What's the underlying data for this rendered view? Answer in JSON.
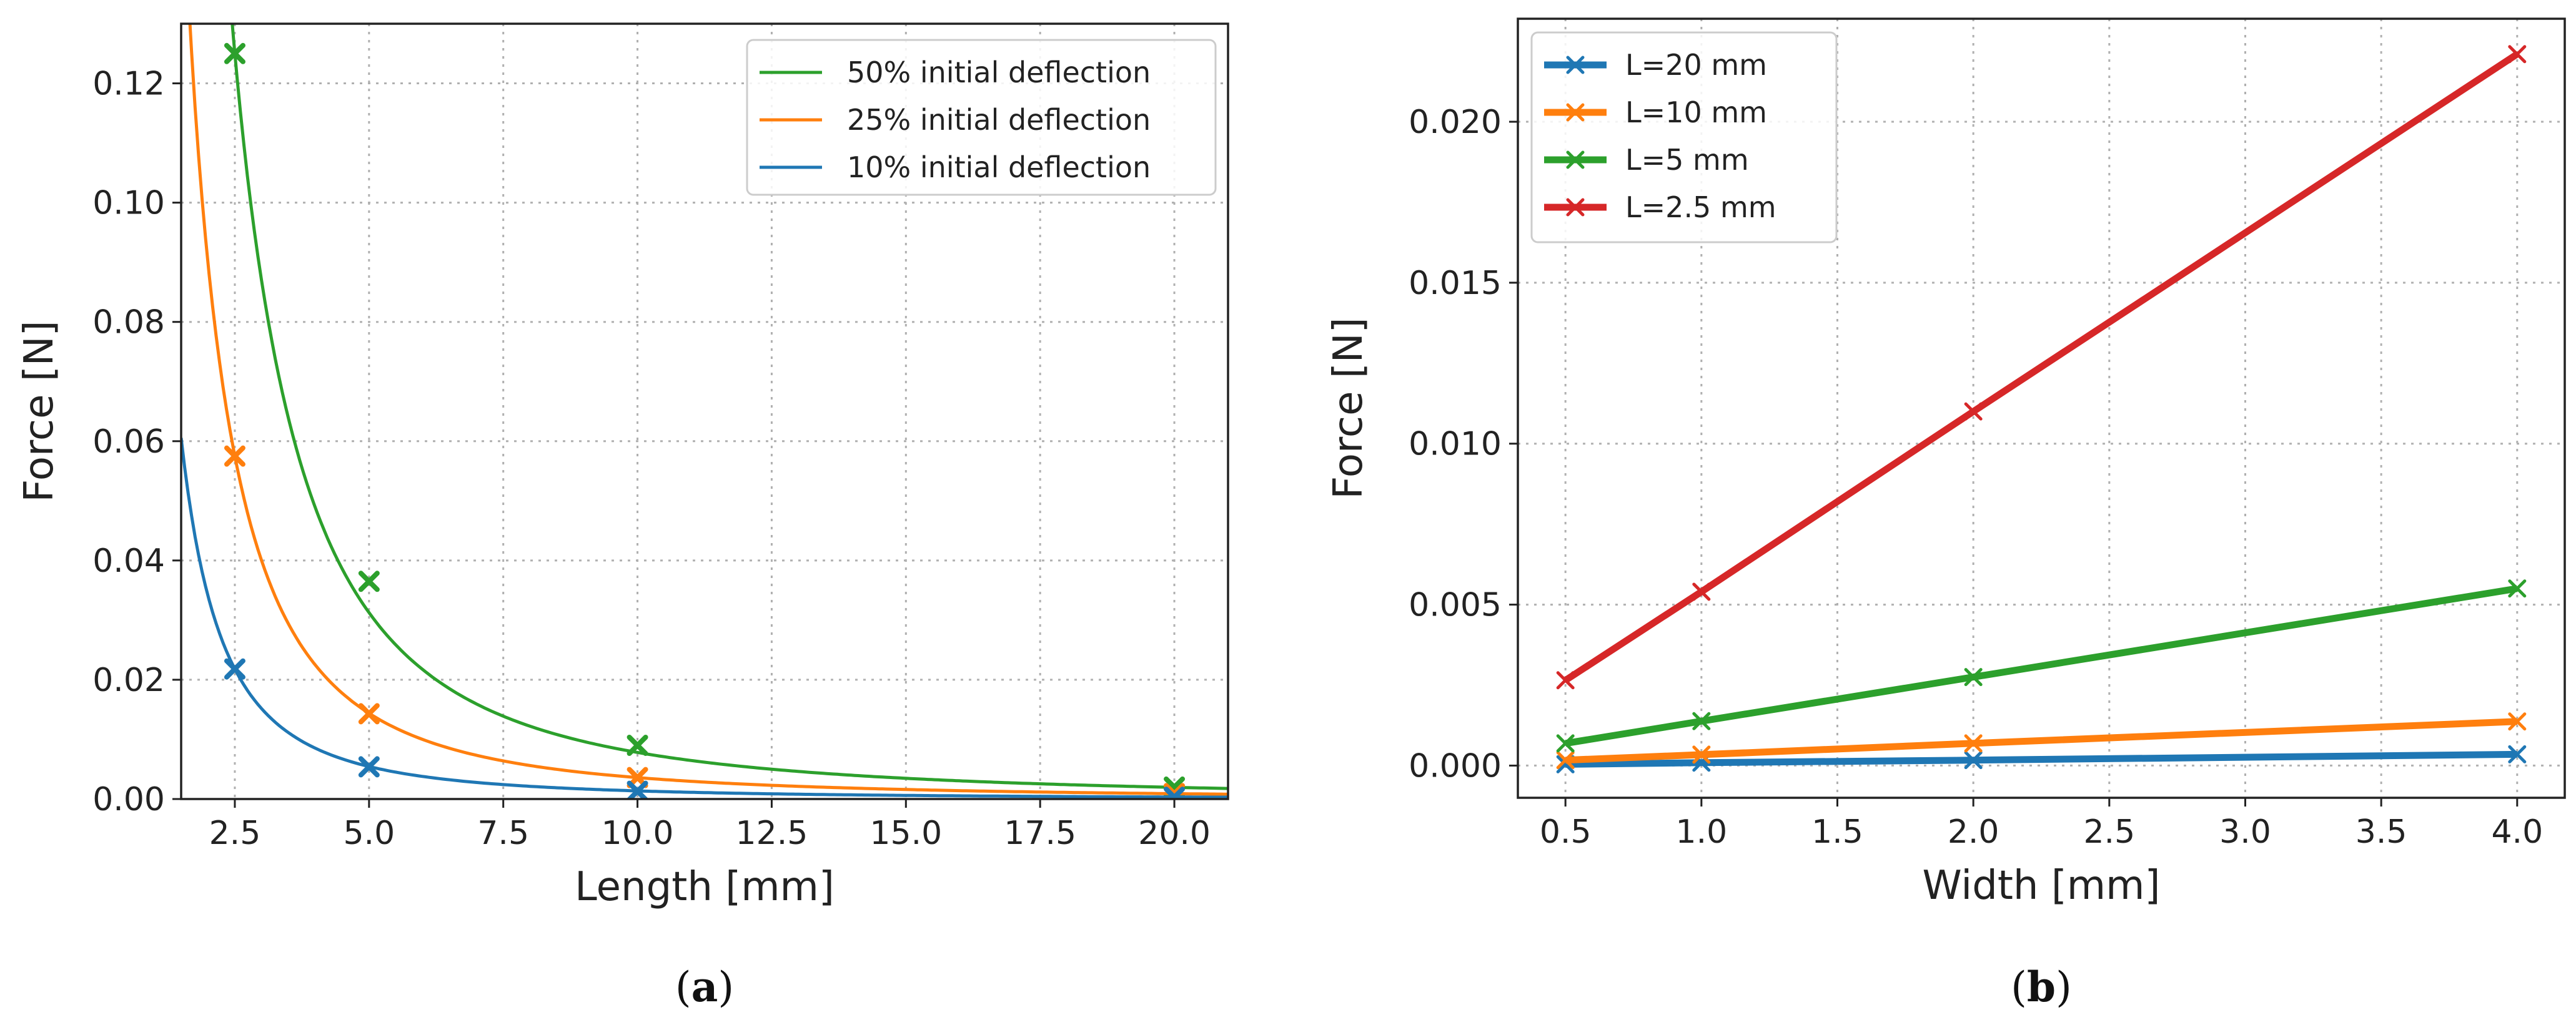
{
  "chart_data": [
    {
      "type": "line",
      "panel_label": "(a)",
      "panel_letter": "a",
      "xlabel": "Length [mm]",
      "ylabel": "Force [N]",
      "xlim": [
        1.5,
        21.0
      ],
      "ylim": [
        0.0,
        0.13
      ],
      "xticks": [
        2.5,
        5.0,
        7.5,
        10.0,
        12.5,
        15.0,
        17.5,
        20.0
      ],
      "xtick_labels": [
        "2.5",
        "5.0",
        "7.5",
        "10.0",
        "12.5",
        "15.0",
        "17.5",
        "20.0"
      ],
      "yticks": [
        0.0,
        0.02,
        0.04,
        0.06,
        0.08,
        0.1,
        0.12
      ],
      "ytick_labels": [
        "0.00",
        "0.02",
        "0.04",
        "0.06",
        "0.08",
        "0.10",
        "0.12"
      ],
      "grid": true,
      "legend_position": "top-right",
      "series": [
        {
          "name": "50% initial deflection",
          "color": "#2ca02c",
          "curve_k": 1.0,
          "markers_x": [
            2.5,
            5.0,
            10.0,
            20.0
          ],
          "markers_y": [
            0.125,
            0.0365,
            0.009,
            0.002
          ]
        },
        {
          "name": "25% initial deflection",
          "color": "#ff7f0e",
          "curve_k": 0.36,
          "markers_x": [
            2.5,
            5.0,
            10.0,
            20.0
          ],
          "markers_y": [
            0.0575,
            0.0143,
            0.0036,
            0.0009
          ]
        },
        {
          "name": "10% initial deflection",
          "color": "#1f77b4",
          "curve_k": 0.138,
          "markers_x": [
            2.5,
            5.0,
            10.0,
            20.0
          ],
          "markers_y": [
            0.0218,
            0.0054,
            0.0013,
            0.0003
          ]
        }
      ]
    },
    {
      "type": "line",
      "panel_label": "(b)",
      "panel_letter": "b",
      "xlabel": "Width [mm]",
      "ylabel": "Force [N]",
      "xlim": [
        0.325,
        4.175
      ],
      "ylim": [
        -0.001,
        0.0232
      ],
      "xticks": [
        0.5,
        1.0,
        1.5,
        2.0,
        2.5,
        3.0,
        3.5,
        4.0
      ],
      "xtick_labels": [
        "0.5",
        "1.0",
        "1.5",
        "2.0",
        "2.5",
        "3.0",
        "3.5",
        "4.0"
      ],
      "yticks": [
        0.0,
        0.005,
        0.01,
        0.015,
        0.02
      ],
      "ytick_labels": [
        "0.000",
        "0.005",
        "0.010",
        "0.015",
        "0.020"
      ],
      "grid": true,
      "legend_position": "top-left",
      "x": [
        0.5,
        1.0,
        2.0,
        4.0
      ],
      "series": [
        {
          "name": "L=20 mm",
          "color": "#1f77b4",
          "values": [
            4e-05,
            9e-05,
            0.00017,
            0.00035
          ]
        },
        {
          "name": "L=10 mm",
          "color": "#ff7f0e",
          "values": [
            0.00017,
            0.00034,
            0.00069,
            0.00137
          ]
        },
        {
          "name": "L=5 mm",
          "color": "#2ca02c",
          "values": [
            0.00069,
            0.00138,
            0.00275,
            0.0055
          ]
        },
        {
          "name": "L=2.5 mm",
          "color": "#d62728",
          "values": [
            0.00265,
            0.0054,
            0.011,
            0.0221
          ]
        }
      ]
    }
  ]
}
